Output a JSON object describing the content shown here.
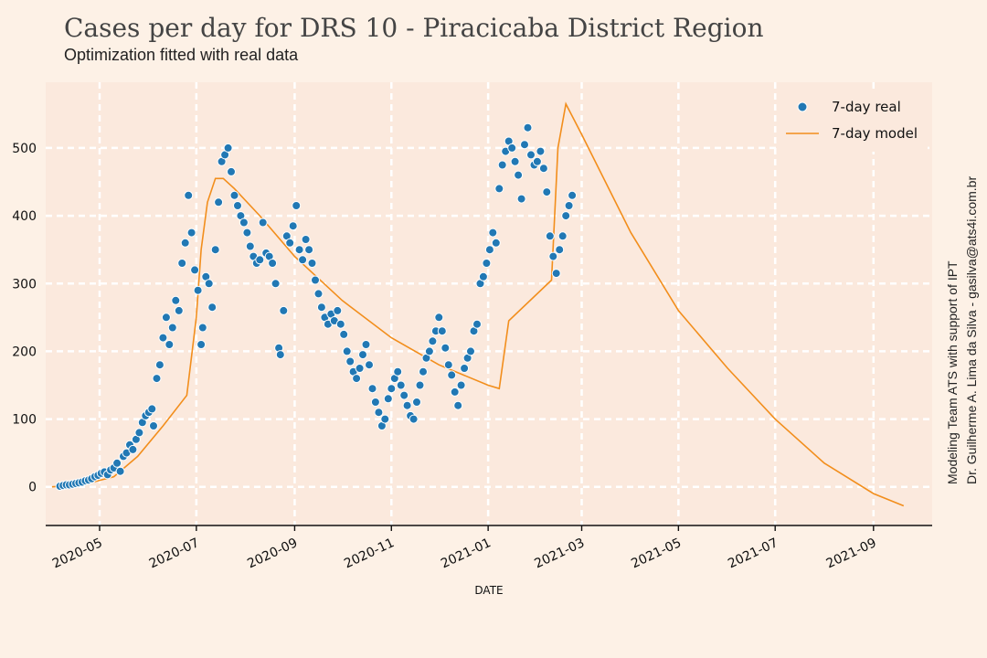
{
  "chart_data": {
    "type": "scatter",
    "title": "Cases per day for DRS 10 - Piracicaba District Region",
    "subtitle": "Optimization fitted with real data",
    "xlabel": "DATE",
    "ylabel": "",
    "xlim": [
      "2020-03-28",
      "2021-10-08"
    ],
    "ylim": [
      -57,
      597
    ],
    "x_ticks": [
      "2020-05-01",
      "2020-07-01",
      "2020-09-01",
      "2020-11-01",
      "2021-01-01",
      "2021-03-01",
      "2021-05-01",
      "2021-07-01",
      "2021-09-01"
    ],
    "x_tick_labels": [
      "2020-05",
      "2020-07",
      "2020-09",
      "2020-11",
      "2021-01",
      "2021-03",
      "2021-05",
      "2021-07",
      "2021-09"
    ],
    "y_ticks": [
      0,
      100,
      200,
      300,
      400,
      500
    ],
    "y_tick_labels": [
      "0",
      "100",
      "200",
      "300",
      "400",
      "500"
    ],
    "grid": true,
    "legend_position": "top-right",
    "colors": {
      "real": "#2178b4",
      "model": "#f28e1c",
      "plot_bg": "#fbe9dd",
      "grid": "#ffffff"
    },
    "series": [
      {
        "name": "7-day real",
        "kind": "scatter",
        "points": [
          [
            "2020-04-06",
            1
          ],
          [
            "2020-04-08",
            2
          ],
          [
            "2020-04-10",
            3
          ],
          [
            "2020-04-12",
            3
          ],
          [
            "2020-04-14",
            4
          ],
          [
            "2020-04-16",
            5
          ],
          [
            "2020-04-18",
            6
          ],
          [
            "2020-04-20",
            7
          ],
          [
            "2020-04-22",
            9
          ],
          [
            "2020-04-24",
            10
          ],
          [
            "2020-04-26",
            12
          ],
          [
            "2020-04-28",
            15
          ],
          [
            "2020-04-30",
            17
          ],
          [
            "2020-05-02",
            20
          ],
          [
            "2020-05-04",
            22
          ],
          [
            "2020-05-06",
            18
          ],
          [
            "2020-05-08",
            25
          ],
          [
            "2020-05-10",
            28
          ],
          [
            "2020-05-12",
            35
          ],
          [
            "2020-05-14",
            23
          ],
          [
            "2020-05-16",
            45
          ],
          [
            "2020-05-18",
            50
          ],
          [
            "2020-05-20",
            62
          ],
          [
            "2020-05-22",
            55
          ],
          [
            "2020-05-24",
            70
          ],
          [
            "2020-05-26",
            80
          ],
          [
            "2020-05-28",
            95
          ],
          [
            "2020-05-30",
            105
          ],
          [
            "2020-06-01",
            110
          ],
          [
            "2020-06-03",
            115
          ],
          [
            "2020-06-04",
            90
          ],
          [
            "2020-06-06",
            160
          ],
          [
            "2020-06-08",
            180
          ],
          [
            "2020-06-10",
            220
          ],
          [
            "2020-06-12",
            250
          ],
          [
            "2020-06-14",
            210
          ],
          [
            "2020-06-16",
            235
          ],
          [
            "2020-06-18",
            275
          ],
          [
            "2020-06-20",
            260
          ],
          [
            "2020-06-22",
            330
          ],
          [
            "2020-06-24",
            360
          ],
          [
            "2020-06-26",
            430
          ],
          [
            "2020-06-28",
            375
          ],
          [
            "2020-06-30",
            320
          ],
          [
            "2020-07-02",
            290
          ],
          [
            "2020-07-04",
            210
          ],
          [
            "2020-07-05",
            235
          ],
          [
            "2020-07-07",
            310
          ],
          [
            "2020-07-09",
            300
          ],
          [
            "2020-07-11",
            265
          ],
          [
            "2020-07-13",
            350
          ],
          [
            "2020-07-15",
            420
          ],
          [
            "2020-07-17",
            480
          ],
          [
            "2020-07-19",
            490
          ],
          [
            "2020-07-21",
            500
          ],
          [
            "2020-07-23",
            465
          ],
          [
            "2020-07-25",
            430
          ],
          [
            "2020-07-27",
            415
          ],
          [
            "2020-07-29",
            400
          ],
          [
            "2020-07-31",
            390
          ],
          [
            "2020-08-02",
            375
          ],
          [
            "2020-08-04",
            355
          ],
          [
            "2020-08-06",
            340
          ],
          [
            "2020-08-08",
            330
          ],
          [
            "2020-08-10",
            335
          ],
          [
            "2020-08-12",
            390
          ],
          [
            "2020-08-14",
            345
          ],
          [
            "2020-08-16",
            340
          ],
          [
            "2020-08-18",
            330
          ],
          [
            "2020-08-20",
            300
          ],
          [
            "2020-08-22",
            205
          ],
          [
            "2020-08-23",
            195
          ],
          [
            "2020-08-25",
            260
          ],
          [
            "2020-08-27",
            370
          ],
          [
            "2020-08-29",
            360
          ],
          [
            "2020-08-31",
            385
          ],
          [
            "2020-09-02",
            415
          ],
          [
            "2020-09-04",
            350
          ],
          [
            "2020-09-06",
            335
          ],
          [
            "2020-09-08",
            365
          ],
          [
            "2020-09-10",
            350
          ],
          [
            "2020-09-12",
            330
          ],
          [
            "2020-09-14",
            305
          ],
          [
            "2020-09-16",
            285
          ],
          [
            "2020-09-18",
            265
          ],
          [
            "2020-09-20",
            250
          ],
          [
            "2020-09-22",
            240
          ],
          [
            "2020-09-24",
            255
          ],
          [
            "2020-09-26",
            245
          ],
          [
            "2020-09-28",
            260
          ],
          [
            "2020-09-30",
            240
          ],
          [
            "2020-10-02",
            225
          ],
          [
            "2020-10-04",
            200
          ],
          [
            "2020-10-06",
            185
          ],
          [
            "2020-10-08",
            170
          ],
          [
            "2020-10-10",
            160
          ],
          [
            "2020-10-12",
            175
          ],
          [
            "2020-10-14",
            195
          ],
          [
            "2020-10-16",
            210
          ],
          [
            "2020-10-18",
            180
          ],
          [
            "2020-10-20",
            145
          ],
          [
            "2020-10-22",
            125
          ],
          [
            "2020-10-24",
            110
          ],
          [
            "2020-10-26",
            90
          ],
          [
            "2020-10-28",
            100
          ],
          [
            "2020-10-30",
            130
          ],
          [
            "2020-11-01",
            145
          ],
          [
            "2020-11-03",
            160
          ],
          [
            "2020-11-05",
            170
          ],
          [
            "2020-11-07",
            150
          ],
          [
            "2020-11-09",
            135
          ],
          [
            "2020-11-11",
            120
          ],
          [
            "2020-11-13",
            105
          ],
          [
            "2020-11-15",
            100
          ],
          [
            "2020-11-17",
            125
          ],
          [
            "2020-11-19",
            150
          ],
          [
            "2020-11-21",
            170
          ],
          [
            "2020-11-23",
            190
          ],
          [
            "2020-11-25",
            200
          ],
          [
            "2020-11-27",
            215
          ],
          [
            "2020-11-29",
            230
          ],
          [
            "2020-12-01",
            250
          ],
          [
            "2020-12-03",
            230
          ],
          [
            "2020-12-05",
            205
          ],
          [
            "2020-12-07",
            180
          ],
          [
            "2020-12-09",
            165
          ],
          [
            "2020-12-11",
            140
          ],
          [
            "2020-12-13",
            120
          ],
          [
            "2020-12-15",
            150
          ],
          [
            "2020-12-17",
            175
          ],
          [
            "2020-12-19",
            190
          ],
          [
            "2020-12-21",
            200
          ],
          [
            "2020-12-23",
            230
          ],
          [
            "2020-12-25",
            240
          ],
          [
            "2020-12-27",
            300
          ],
          [
            "2020-12-29",
            310
          ],
          [
            "2020-12-31",
            330
          ],
          [
            "2021-01-02",
            350
          ],
          [
            "2021-01-04",
            375
          ],
          [
            "2021-01-06",
            360
          ],
          [
            "2021-01-08",
            440
          ],
          [
            "2021-01-10",
            475
          ],
          [
            "2021-01-12",
            495
          ],
          [
            "2021-01-14",
            510
          ],
          [
            "2021-01-16",
            500
          ],
          [
            "2021-01-18",
            480
          ],
          [
            "2021-01-20",
            460
          ],
          [
            "2021-01-22",
            425
          ],
          [
            "2021-01-24",
            505
          ],
          [
            "2021-01-26",
            530
          ],
          [
            "2021-01-28",
            490
          ],
          [
            "2021-01-30",
            475
          ],
          [
            "2021-02-01",
            480
          ],
          [
            "2021-02-03",
            495
          ],
          [
            "2021-02-05",
            470
          ],
          [
            "2021-02-07",
            435
          ],
          [
            "2021-02-09",
            370
          ],
          [
            "2021-02-11",
            340
          ],
          [
            "2021-02-13",
            315
          ],
          [
            "2021-02-15",
            350
          ],
          [
            "2021-02-17",
            370
          ],
          [
            "2021-02-19",
            400
          ],
          [
            "2021-02-21",
            415
          ],
          [
            "2021-02-23",
            430
          ]
        ]
      },
      {
        "name": "7-day model",
        "kind": "line",
        "points": [
          [
            "2020-04-01",
            0
          ],
          [
            "2020-04-20",
            3
          ],
          [
            "2020-05-10",
            15
          ],
          [
            "2020-05-25",
            45
          ],
          [
            "2020-06-10",
            90
          ],
          [
            "2020-06-25",
            135
          ],
          [
            "2020-07-01",
            250
          ],
          [
            "2020-07-04",
            350
          ],
          [
            "2020-07-08",
            420
          ],
          [
            "2020-07-13",
            455
          ],
          [
            "2020-07-18",
            455
          ],
          [
            "2020-07-25",
            440
          ],
          [
            "2020-08-10",
            400
          ],
          [
            "2020-09-01",
            340
          ],
          [
            "2020-10-01",
            275
          ],
          [
            "2020-11-01",
            220
          ],
          [
            "2020-12-01",
            180
          ],
          [
            "2021-01-01",
            150
          ],
          [
            "2021-01-08",
            145
          ],
          [
            "2021-01-14",
            245
          ],
          [
            "2021-02-10",
            305
          ],
          [
            "2021-02-14",
            500
          ],
          [
            "2021-02-19",
            565
          ],
          [
            "2021-03-01",
            520
          ],
          [
            "2021-04-01",
            375
          ],
          [
            "2021-05-01",
            260
          ],
          [
            "2021-06-01",
            175
          ],
          [
            "2021-07-01",
            100
          ],
          [
            "2021-08-01",
            35
          ],
          [
            "2021-09-01",
            -10
          ],
          [
            "2021-09-20",
            -28
          ]
        ]
      }
    ]
  },
  "credits": {
    "line1": "Modeling Team ATS with support of IPT",
    "line2": "Dr. Guilherme A. Lima da Silva - gasilva@ats4i.com.br"
  }
}
